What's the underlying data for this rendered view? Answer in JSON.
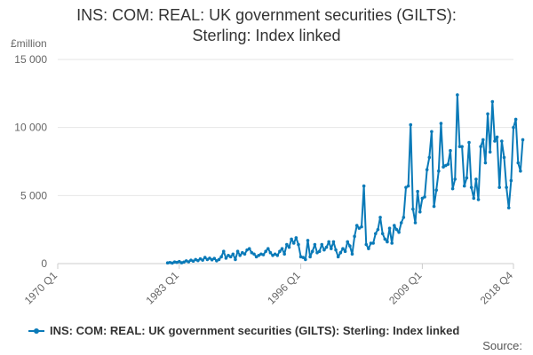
{
  "title_line1": "INS: COM: REAL: UK government securities (GILTS):",
  "title_line2": "Sterling: Index linked",
  "source_label": "Source:",
  "colors": {
    "series": "#0a7ab8",
    "grid": "#e6e6e6",
    "axis_text": "#666666"
  },
  "chart_data": {
    "type": "line",
    "title": "INS: COM: REAL: UK government securities (GILTS): Sterling: Index linked",
    "ylabel": "£million",
    "xlabel": "",
    "xlim": [
      1970.0,
      2018.75
    ],
    "ylim": [
      0,
      15000
    ],
    "y_ticks": [
      0,
      5000,
      10000,
      15000
    ],
    "y_tick_labels": [
      "0",
      "5 000",
      "10 000",
      "15 000"
    ],
    "x_ticks": [
      1970.0,
      1983.0,
      1996.0,
      2009.0,
      2018.75
    ],
    "x_tick_labels": [
      "1970 Q1",
      "1983 Q1",
      "1996 Q1",
      "2009 Q1",
      "2018 Q4"
    ],
    "grid": true,
    "legend_position": "bottom-left",
    "series": [
      {
        "name": "INS: COM: REAL: UK government securities (GILTS): Sterling: Index linked",
        "points": [
          [
            1981.75,
            50
          ],
          [
            1982.0,
            80
          ],
          [
            1982.25,
            40
          ],
          [
            1982.5,
            120
          ],
          [
            1982.75,
            90
          ],
          [
            1983.0,
            150
          ],
          [
            1983.25,
            60
          ],
          [
            1983.5,
            110
          ],
          [
            1983.75,
            200
          ],
          [
            1984.0,
            130
          ],
          [
            1984.25,
            250
          ],
          [
            1984.5,
            180
          ],
          [
            1984.75,
            300
          ],
          [
            1985.0,
            220
          ],
          [
            1985.25,
            350
          ],
          [
            1985.5,
            250
          ],
          [
            1985.75,
            450
          ],
          [
            1986.0,
            300
          ],
          [
            1986.25,
            400
          ],
          [
            1986.5,
            280
          ],
          [
            1986.75,
            380
          ],
          [
            1987.0,
            200
          ],
          [
            1987.25,
            300
          ],
          [
            1987.5,
            500
          ],
          [
            1987.75,
            900
          ],
          [
            1988.0,
            400
          ],
          [
            1988.25,
            600
          ],
          [
            1988.5,
            500
          ],
          [
            1988.75,
            700
          ],
          [
            1989.0,
            300
          ],
          [
            1989.25,
            900
          ],
          [
            1989.5,
            600
          ],
          [
            1989.75,
            800
          ],
          [
            1990.0,
            700
          ],
          [
            1990.25,
            1000
          ],
          [
            1990.5,
            1100
          ],
          [
            1990.75,
            800
          ],
          [
            1991.0,
            700
          ],
          [
            1991.25,
            500
          ],
          [
            1991.5,
            600
          ],
          [
            1991.75,
            700
          ],
          [
            1992.0,
            650
          ],
          [
            1992.25,
            900
          ],
          [
            1992.5,
            1100
          ],
          [
            1992.75,
            800
          ],
          [
            1993.0,
            600
          ],
          [
            1993.25,
            700
          ],
          [
            1993.5,
            600
          ],
          [
            1993.75,
            900
          ],
          [
            1994.0,
            1100
          ],
          [
            1994.25,
            700
          ],
          [
            1994.5,
            1400
          ],
          [
            1994.75,
            1200
          ],
          [
            1995.0,
            1800
          ],
          [
            1995.25,
            1500
          ],
          [
            1995.5,
            1900
          ],
          [
            1995.75,
            1400
          ],
          [
            1996.0,
            500
          ],
          [
            1996.25,
            450
          ],
          [
            1996.5,
            300
          ],
          [
            1996.75,
            1700
          ],
          [
            1997.0,
            500
          ],
          [
            1997.25,
            900
          ],
          [
            1997.5,
            1400
          ],
          [
            1997.75,
            800
          ],
          [
            1998.0,
            900
          ],
          [
            1998.25,
            1400
          ],
          [
            1998.5,
            1000
          ],
          [
            1998.75,
            1200
          ],
          [
            1999.0,
            1600
          ],
          [
            1999.25,
            1100
          ],
          [
            1999.5,
            1600
          ],
          [
            1999.75,
            1000
          ],
          [
            2000.0,
            500
          ],
          [
            2000.25,
            800
          ],
          [
            2000.5,
            1100
          ],
          [
            2000.75,
            900
          ],
          [
            2001.0,
            1600
          ],
          [
            2001.25,
            1300
          ],
          [
            2001.5,
            700
          ],
          [
            2001.75,
            2000
          ],
          [
            2002.0,
            2800
          ],
          [
            2002.25,
            2600
          ],
          [
            2002.5,
            2700
          ],
          [
            2002.75,
            5700
          ],
          [
            2003.0,
            1400
          ],
          [
            2003.25,
            1100
          ],
          [
            2003.5,
            1500
          ],
          [
            2003.75,
            1500
          ],
          [
            2004.0,
            2200
          ],
          [
            2004.25,
            2500
          ],
          [
            2004.5,
            3400
          ],
          [
            2004.75,
            2200
          ],
          [
            2005.0,
            1800
          ],
          [
            2005.25,
            1600
          ],
          [
            2005.5,
            2600
          ],
          [
            2005.75,
            1500
          ],
          [
            2006.0,
            2800
          ],
          [
            2006.25,
            2500
          ],
          [
            2006.5,
            2300
          ],
          [
            2006.75,
            3000
          ],
          [
            2007.0,
            3400
          ],
          [
            2007.25,
            5600
          ],
          [
            2007.5,
            5700
          ],
          [
            2007.75,
            10200
          ],
          [
            2008.0,
            4000
          ],
          [
            2008.25,
            3000
          ],
          [
            2008.5,
            5300
          ],
          [
            2008.75,
            3800
          ],
          [
            2009.0,
            4800
          ],
          [
            2009.25,
            4900
          ],
          [
            2009.5,
            6900
          ],
          [
            2009.75,
            7800
          ],
          [
            2010.0,
            9700
          ],
          [
            2010.25,
            4200
          ],
          [
            2010.5,
            5400
          ],
          [
            2010.75,
            6800
          ],
          [
            2011.0,
            10300
          ],
          [
            2011.25,
            7100
          ],
          [
            2011.5,
            7200
          ],
          [
            2011.75,
            7300
          ],
          [
            2012.0,
            8300
          ],
          [
            2012.25,
            5500
          ],
          [
            2012.5,
            6200
          ],
          [
            2012.75,
            12400
          ],
          [
            2013.0,
            8600
          ],
          [
            2013.25,
            8600
          ],
          [
            2013.5,
            5700
          ],
          [
            2013.75,
            6300
          ],
          [
            2014.0,
            8900
          ],
          [
            2014.25,
            5600
          ],
          [
            2014.5,
            4800
          ],
          [
            2014.75,
            6200
          ],
          [
            2015.0,
            4700
          ],
          [
            2015.25,
            8600
          ],
          [
            2015.5,
            9100
          ],
          [
            2015.75,
            7400
          ],
          [
            2016.0,
            11000
          ],
          [
            2016.25,
            8200
          ],
          [
            2016.5,
            11900
          ],
          [
            2016.75,
            9000
          ],
          [
            2017.0,
            9300
          ],
          [
            2017.25,
            5600
          ],
          [
            2017.5,
            9000
          ],
          [
            2017.75,
            7800
          ],
          [
            2018.0,
            5600
          ],
          [
            2018.25,
            4100
          ],
          [
            2018.5,
            6100
          ],
          [
            2018.75,
            10000
          ],
          [
            2019.0,
            10600
          ],
          [
            2019.25,
            7400
          ],
          [
            2019.5,
            6800
          ],
          [
            2019.75,
            9100
          ]
        ]
      }
    ]
  }
}
